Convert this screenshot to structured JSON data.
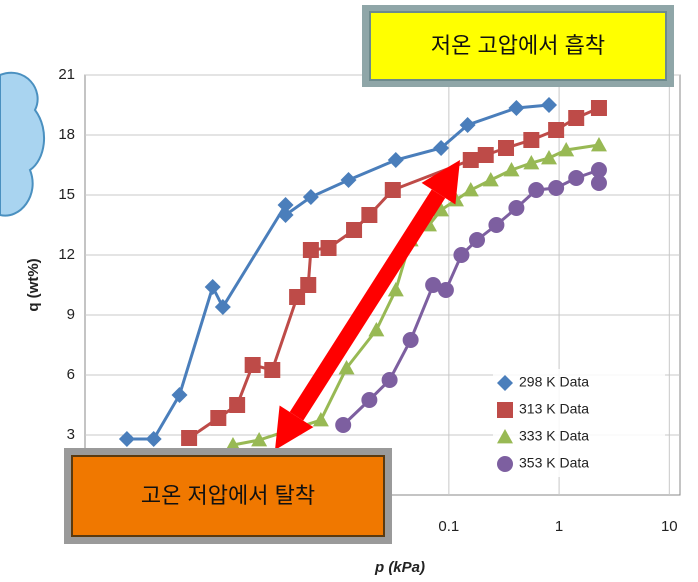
{
  "chart_data": {
    "type": "scatter",
    "xlabel": "p (kPa)",
    "ylabel": "q (wt%)",
    "xscale": "log",
    "xlim": [
      5e-05,
      12.5
    ],
    "xticks": [
      0.1,
      1,
      10
    ],
    "ylim": [
      0,
      21
    ],
    "yticks": [
      3,
      6,
      9,
      12,
      15,
      18,
      21
    ],
    "grid": true,
    "legend": "lower right",
    "series": [
      {
        "name": "298 K Data",
        "color": "#4a7ebb",
        "marker": "diamond",
        "x": [
          0.00012,
          0.00021,
          0.00036,
          0.00072,
          0.00089,
          0.0033,
          0.0033,
          0.0056,
          0.0123,
          0.033,
          0.085,
          0.148,
          0.41,
          0.81
        ],
        "values": [
          2.8,
          2.8,
          5.0,
          10.4,
          9.4,
          14.5,
          14.0,
          14.9,
          15.75,
          16.75,
          17.35,
          18.5,
          19.35,
          19.5
        ]
      },
      {
        "name": "313 K Data",
        "color": "#be4b48",
        "marker": "square",
        "x": [
          0.00044,
          0.00081,
          0.0012,
          0.00166,
          0.0025,
          0.0042,
          0.0053,
          0.0056,
          0.0081,
          0.0138,
          0.019,
          0.031,
          0.158,
          0.216,
          0.33,
          0.56,
          0.94,
          1.43,
          2.3
        ],
        "values": [
          2.85,
          3.85,
          4.5,
          6.5,
          6.25,
          9.9,
          10.5,
          12.25,
          12.35,
          13.25,
          14.0,
          15.25,
          16.75,
          17.0,
          17.35,
          17.75,
          18.25,
          18.85,
          19.35
        ]
      },
      {
        "name": "333 K Data",
        "color": "#98b954",
        "marker": "triangle",
        "x": [
          0.0011,
          0.0019,
          0.0069,
          0.0118,
          0.022,
          0.033,
          0.045,
          0.066,
          0.085,
          0.116,
          0.158,
          0.24,
          0.37,
          0.56,
          0.81,
          1.16,
          2.3
        ],
        "values": [
          2.5,
          2.75,
          3.75,
          6.35,
          8.25,
          10.25,
          12.75,
          13.5,
          14.25,
          14.75,
          15.25,
          15.75,
          16.25,
          16.6,
          16.85,
          17.25,
          17.5
        ]
      },
      {
        "name": "353 K Data",
        "color": "#7d5fa0",
        "marker": "circle",
        "x": [
          0.011,
          0.019,
          0.029,
          0.045,
          0.072,
          0.094,
          0.13,
          0.18,
          0.27,
          0.41,
          0.62,
          0.94,
          1.43,
          2.3,
          2.3
        ],
        "values": [
          3.5,
          4.75,
          5.75,
          7.75,
          10.5,
          10.25,
          12.0,
          12.75,
          13.5,
          14.35,
          15.25,
          15.35,
          15.85,
          16.25,
          15.6
        ]
      }
    ],
    "annotations": [
      "저온 고압에서 흡착",
      "고온 저압에서 탈착"
    ]
  }
}
